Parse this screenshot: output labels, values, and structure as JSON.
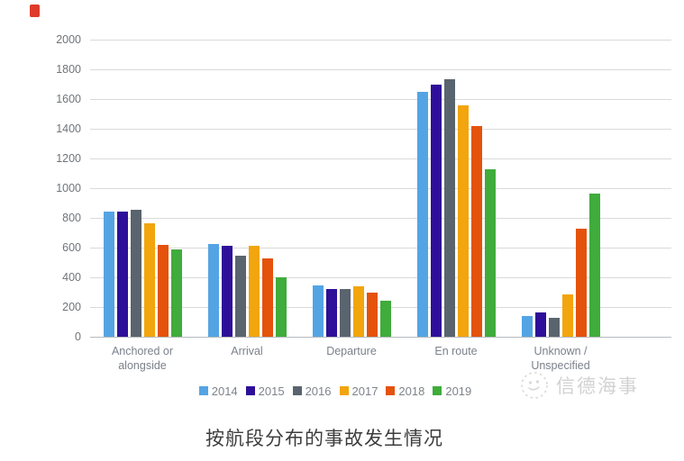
{
  "decor": {
    "red_mark_color": "#df3b2a"
  },
  "watermark": {
    "text": "信德海事",
    "logo": "xinde-marine-logo",
    "color": "#c3c3c3"
  },
  "caption": {
    "text": "按航段分布的事故发生情况"
  },
  "chart_data": {
    "type": "bar",
    "title": "",
    "xlabel": "",
    "ylabel": "",
    "categories": [
      "Anchored or alongside",
      "Arrival",
      "Departure",
      "En route",
      "Unknown / Unspecified"
    ],
    "category_labels_wrapped": [
      [
        "Anchored or",
        "alongside"
      ],
      [
        "Arrival"
      ],
      [
        "Departure"
      ],
      [
        "En route"
      ],
      [
        "Unknown /",
        "Unspecified"
      ]
    ],
    "series": [
      {
        "name": "2014",
        "color": "#54a4e4",
        "values": [
          840,
          625,
          345,
          1650,
          140
        ]
      },
      {
        "name": "2015",
        "color": "#2e0f99",
        "values": [
          845,
          610,
          320,
          1700,
          165
        ]
      },
      {
        "name": "2016",
        "color": "#5a646e",
        "values": [
          855,
          545,
          320,
          1735,
          130
        ]
      },
      {
        "name": "2017",
        "color": "#f2a50c",
        "values": [
          765,
          615,
          340,
          1560,
          285
        ]
      },
      {
        "name": "2018",
        "color": "#e4520b",
        "values": [
          620,
          530,
          295,
          1420,
          730
        ]
      },
      {
        "name": "2019",
        "color": "#3fac3b",
        "values": [
          590,
          400,
          240,
          1130,
          965
        ]
      }
    ],
    "ylim": [
      0,
      2000
    ],
    "ytick_step": 200,
    "yticks": [
      0,
      200,
      400,
      600,
      800,
      1000,
      1200,
      1400,
      1600,
      1800,
      2000
    ],
    "grid": true,
    "legend_position": "bottom",
    "legend_labels": [
      "2014",
      "2015",
      "2016",
      "2017",
      "2018",
      "2019"
    ],
    "axis_text_color": "#7b828b",
    "gridline_color": "#d9dadb"
  }
}
